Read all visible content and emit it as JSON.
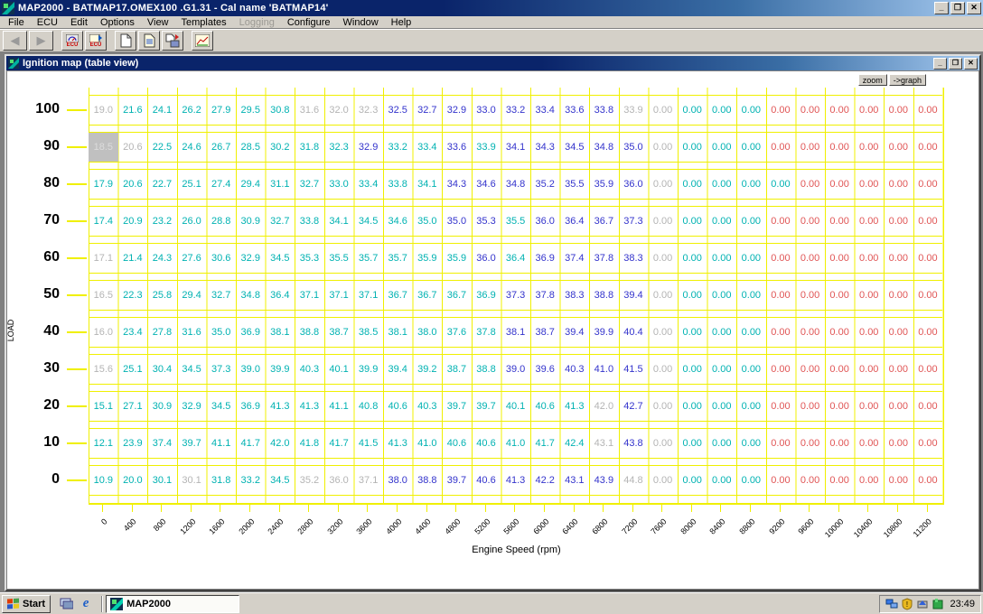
{
  "window": {
    "title": "MAP2000 - BATMAP17.OMEX100 .G1.31 - Cal name 'BATMAP14'",
    "controls": {
      "minimize": "_",
      "maximize": "❐",
      "close": "✕"
    }
  },
  "menu": {
    "items": [
      {
        "label": "File",
        "enabled": true
      },
      {
        "label": "ECU",
        "enabled": true
      },
      {
        "label": "Edit",
        "enabled": true
      },
      {
        "label": "Options",
        "enabled": true
      },
      {
        "label": "View",
        "enabled": true
      },
      {
        "label": "Templates",
        "enabled": true
      },
      {
        "label": "Logging",
        "enabled": false
      },
      {
        "label": "Configure",
        "enabled": true
      },
      {
        "label": "Window",
        "enabled": true
      },
      {
        "label": "Help",
        "enabled": true
      }
    ]
  },
  "toolbar": {
    "back_glyph": "◀",
    "forward_glyph": "▶",
    "ecu_read_label": "ECU",
    "ecu_write_label": "ECU"
  },
  "child": {
    "title": "Ignition map (table view)",
    "zoom_label": "zoom",
    "graph_label": "->graph",
    "controls": {
      "minimize": "_",
      "maximize": "❐",
      "close": "✕"
    }
  },
  "map": {
    "y_axis_label": "LOAD",
    "x_axis_label": "Engine Speed (rpm)",
    "rpm_labels": [
      "0",
      "400",
      "800",
      "1200",
      "1600",
      "2000",
      "2400",
      "2800",
      "3200",
      "3600",
      "4000",
      "4400",
      "4800",
      "5200",
      "5600",
      "6000",
      "6400",
      "6800",
      "7200",
      "7600",
      "8000",
      "8400",
      "8800",
      "9200",
      "9600",
      "10000",
      "10400",
      "10800",
      "11200"
    ],
    "palette": {
      "t": "#00b2b2",
      "b": "#3333cc",
      "g": "#b4b4b4",
      "r": "#e05555",
      "s": "#dcdcdc"
    },
    "selected_cell": {
      "load": "90",
      "rpm": "0"
    },
    "rows": [
      {
        "load": "100",
        "colors": "gttttttgggbbbbbbbbggtttrrrrrr",
        "values": [
          "19.0",
          "21.6",
          "24.1",
          "26.2",
          "27.9",
          "29.5",
          "30.8",
          "31.6",
          "32.0",
          "32.3",
          "32.5",
          "32.7",
          "32.9",
          "33.0",
          "33.2",
          "33.4",
          "33.6",
          "33.8",
          "33.9",
          "0.00",
          "0.00",
          "0.00",
          "0.00",
          "0.00",
          "0.00",
          "0.00",
          "0.00",
          "0.00",
          "0.00"
        ]
      },
      {
        "load": "90",
        "colors": "sgtttttttbttbtbbbbbgtttrrrrrr",
        "values": [
          "18.5",
          "20.6",
          "22.5",
          "24.6",
          "26.7",
          "28.5",
          "30.2",
          "31.8",
          "32.3",
          "32.9",
          "33.2",
          "33.4",
          "33.6",
          "33.9",
          "34.1",
          "34.3",
          "34.5",
          "34.8",
          "35.0",
          "0.00",
          "0.00",
          "0.00",
          "0.00",
          "0.00",
          "0.00",
          "0.00",
          "0.00",
          "0.00",
          "0.00"
        ]
      },
      {
        "load": "80",
        "colors": "ttttttttttttbbbbbbbgttttrrrrr",
        "values": [
          "17.9",
          "20.6",
          "22.7",
          "25.1",
          "27.4",
          "29.4",
          "31.1",
          "32.7",
          "33.0",
          "33.4",
          "33.8",
          "34.1",
          "34.3",
          "34.6",
          "34.8",
          "35.2",
          "35.5",
          "35.9",
          "36.0",
          "0.00",
          "0.00",
          "0.00",
          "0.00",
          "0.00",
          "0.00",
          "0.00",
          "0.00",
          "0.00",
          "0.00"
        ]
      },
      {
        "load": "70",
        "colors": "ttttttttttttbbtbbbbgtttrrrrrr",
        "values": [
          "17.4",
          "20.9",
          "23.2",
          "26.0",
          "28.8",
          "30.9",
          "32.7",
          "33.8",
          "34.1",
          "34.5",
          "34.6",
          "35.0",
          "35.0",
          "35.3",
          "35.5",
          "36.0",
          "36.4",
          "36.7",
          "37.3",
          "0.00",
          "0.00",
          "0.00",
          "0.00",
          "0.00",
          "0.00",
          "0.00",
          "0.00",
          "0.00",
          "0.00"
        ]
      },
      {
        "load": "60",
        "colors": "gttttttttttttbtbbbbgtttrrrrrr",
        "values": [
          "17.1",
          "21.4",
          "24.3",
          "27.6",
          "30.6",
          "32.9",
          "34.5",
          "35.3",
          "35.5",
          "35.7",
          "35.7",
          "35.9",
          "35.9",
          "36.0",
          "36.4",
          "36.9",
          "37.4",
          "37.8",
          "38.3",
          "0.00",
          "0.00",
          "0.00",
          "0.00",
          "0.00",
          "0.00",
          "0.00",
          "0.00",
          "0.00",
          "0.00"
        ]
      },
      {
        "load": "50",
        "colors": "gtttttttttttttbbbbbgtttrrrrrr",
        "values": [
          "16.5",
          "22.3",
          "25.8",
          "29.4",
          "32.7",
          "34.8",
          "36.4",
          "37.1",
          "37.1",
          "37.1",
          "36.7",
          "36.7",
          "36.7",
          "36.9",
          "37.3",
          "37.8",
          "38.3",
          "38.8",
          "39.4",
          "0.00",
          "0.00",
          "0.00",
          "0.00",
          "0.00",
          "0.00",
          "0.00",
          "0.00",
          "0.00",
          "0.00"
        ]
      },
      {
        "load": "40",
        "colors": "gtttttttttttttbbbbbgtttrrrrrr",
        "values": [
          "16.0",
          "23.4",
          "27.8",
          "31.6",
          "35.0",
          "36.9",
          "38.1",
          "38.8",
          "38.7",
          "38.5",
          "38.1",
          "38.0",
          "37.6",
          "37.8",
          "38.1",
          "38.7",
          "39.4",
          "39.9",
          "40.4",
          "0.00",
          "0.00",
          "0.00",
          "0.00",
          "0.00",
          "0.00",
          "0.00",
          "0.00",
          "0.00",
          "0.00"
        ]
      },
      {
        "load": "30",
        "colors": "gtttttttttttttbbbbbgtttrrrrrr",
        "values": [
          "15.6",
          "25.1",
          "30.4",
          "34.5",
          "37.3",
          "39.0",
          "39.9",
          "40.3",
          "40.1",
          "39.9",
          "39.4",
          "39.2",
          "38.7",
          "38.8",
          "39.0",
          "39.6",
          "40.3",
          "41.0",
          "41.5",
          "0.00",
          "0.00",
          "0.00",
          "0.00",
          "0.00",
          "0.00",
          "0.00",
          "0.00",
          "0.00",
          "0.00"
        ]
      },
      {
        "load": "20",
        "colors": "tttttttttttttttttgbgtttrrrrrr",
        "values": [
          "15.1",
          "27.1",
          "30.9",
          "32.9",
          "34.5",
          "36.9",
          "41.3",
          "41.3",
          "41.1",
          "40.8",
          "40.6",
          "40.3",
          "39.7",
          "39.7",
          "40.1",
          "40.6",
          "41.3",
          "42.0",
          "42.7",
          "0.00",
          "0.00",
          "0.00",
          "0.00",
          "0.00",
          "0.00",
          "0.00",
          "0.00",
          "0.00",
          "0.00"
        ]
      },
      {
        "load": "10",
        "colors": "tttttttttttttttttgbgtttrrrrrr",
        "values": [
          "12.1",
          "23.9",
          "37.4",
          "39.7",
          "41.1",
          "41.7",
          "42.0",
          "41.8",
          "41.7",
          "41.5",
          "41.3",
          "41.0",
          "40.6",
          "40.6",
          "41.0",
          "41.7",
          "42.4",
          "43.1",
          "43.8",
          "0.00",
          "0.00",
          "0.00",
          "0.00",
          "0.00",
          "0.00",
          "0.00",
          "0.00",
          "0.00",
          "0.00"
        ]
      },
      {
        "load": "0",
        "colors": "tttgtttgggbbbbbbbbggtttrrrrrr",
        "values": [
          "10.9",
          "20.0",
          "30.1",
          "30.1",
          "31.8",
          "33.2",
          "34.5",
          "35.2",
          "36.0",
          "37.1",
          "38.0",
          "38.8",
          "39.7",
          "40.6",
          "41.3",
          "42.2",
          "43.1",
          "43.9",
          "44.8",
          "0.00",
          "0.00",
          "0.00",
          "0.00",
          "0.00",
          "0.00",
          "0.00",
          "0.00",
          "0.00",
          "0.00"
        ]
      }
    ]
  },
  "taskbar": {
    "start_label": "Start",
    "task_label": "MAP2000",
    "clock": "23:49",
    "tray_icons": [
      "network-icon",
      "security-shield-icon",
      "hardware-icon",
      "map2000-tray-icon"
    ]
  }
}
